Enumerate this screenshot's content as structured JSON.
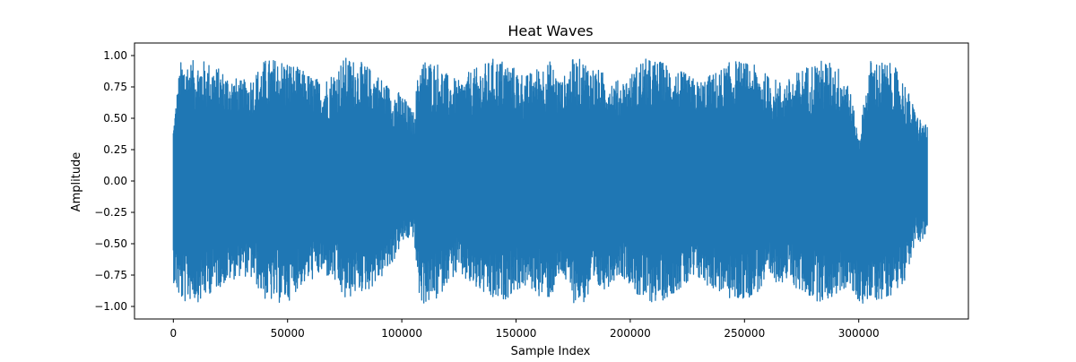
{
  "chart_data": {
    "type": "line",
    "title": "Heat Waves",
    "xlabel": "Sample Index",
    "ylabel": "Amplitude",
    "xlim": [
      -17000,
      348000
    ],
    "ylim": [
      -1.1,
      1.1
    ],
    "x_ticks": [
      0,
      50000,
      100000,
      150000,
      200000,
      250000,
      300000
    ],
    "y_ticks": [
      -1.0,
      -0.75,
      -0.5,
      -0.25,
      0.0,
      0.25,
      0.5,
      0.75,
      1.0
    ],
    "x_tick_labels": [
      "0",
      "50000",
      "100000",
      "150000",
      "200000",
      "250000",
      "300000"
    ],
    "y_tick_labels": [
      "−1.00",
      "−0.75",
      "−0.50",
      "−0.25",
      "0.00",
      "0.25",
      "0.50",
      "0.75",
      "1.00"
    ],
    "grid": false,
    "legend": false,
    "series": [
      {
        "color": "#1f77b4",
        "x_range": [
          0,
          330000
        ],
        "envelope": {
          "x": [
            0,
            1500,
            3000,
            5000,
            8000,
            12000,
            16000,
            20000,
            25000,
            30000,
            35000,
            40000,
            45000,
            50000,
            55000,
            60000,
            65000,
            70000,
            75000,
            80000,
            85000,
            90000,
            95000,
            100000,
            105000,
            108000,
            112000,
            116000,
            120000,
            125000,
            130000,
            135000,
            140000,
            145000,
            150000,
            155000,
            160000,
            165000,
            170000,
            175000,
            180000,
            185000,
            190000,
            195000,
            200000,
            205000,
            210000,
            215000,
            220000,
            225000,
            230000,
            235000,
            240000,
            245000,
            250000,
            255000,
            260000,
            265000,
            270000,
            275000,
            280000,
            285000,
            290000,
            295000,
            300000,
            305000,
            310000,
            315000,
            320000,
            325000,
            330000
          ],
          "upper": [
            0.45,
            0.7,
            0.95,
            0.98,
            0.96,
            0.97,
            0.95,
            0.9,
            0.85,
            0.8,
            0.85,
            0.97,
            0.98,
            0.97,
            0.9,
            0.85,
            0.8,
            0.88,
            0.99,
            0.97,
            0.92,
            0.85,
            0.75,
            0.7,
            0.55,
            0.98,
            0.97,
            0.95,
            0.85,
            0.8,
            0.88,
            0.92,
            0.98,
            0.97,
            0.9,
            0.85,
            0.92,
            0.96,
            0.8,
            0.98,
            0.97,
            0.9,
            0.85,
            0.8,
            0.85,
            0.98,
            0.97,
            0.95,
            0.9,
            0.85,
            0.8,
            0.85,
            0.9,
            0.97,
            0.95,
            0.92,
            0.85,
            0.8,
            0.82,
            0.9,
            0.95,
            0.97,
            0.93,
            0.85,
            0.35,
            0.97,
            0.96,
            0.93,
            0.8,
            0.55,
            0.43
          ],
          "lower": [
            -0.8,
            -0.9,
            -0.97,
            -0.98,
            -0.95,
            -0.97,
            -0.9,
            -0.85,
            -0.8,
            -0.75,
            -0.8,
            -0.95,
            -0.98,
            -0.97,
            -0.85,
            -0.8,
            -0.75,
            -0.8,
            -0.97,
            -0.9,
            -0.88,
            -0.8,
            -0.7,
            -0.5,
            -0.45,
            -0.99,
            -0.98,
            -0.95,
            -0.8,
            -0.75,
            -0.85,
            -0.9,
            -0.98,
            -0.95,
            -0.88,
            -0.85,
            -0.92,
            -0.95,
            -0.75,
            -0.97,
            -0.98,
            -0.9,
            -0.85,
            -0.75,
            -0.82,
            -0.98,
            -0.97,
            -0.95,
            -0.88,
            -0.85,
            -0.8,
            -0.85,
            -0.9,
            -0.97,
            -0.95,
            -0.9,
            -0.85,
            -0.8,
            -0.82,
            -0.9,
            -0.95,
            -0.97,
            -0.92,
            -0.85,
            -0.98,
            -0.97,
            -0.95,
            -0.9,
            -0.8,
            -0.5,
            -0.45
          ]
        }
      }
    ]
  }
}
